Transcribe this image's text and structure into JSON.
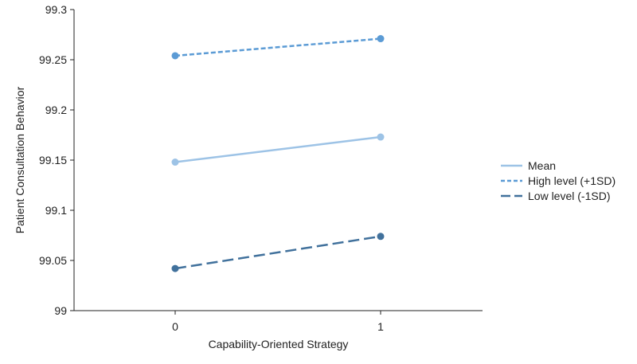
{
  "chart_data": {
    "type": "line",
    "title": "",
    "xlabel": "Capability-Oriented Strategy",
    "ylabel": "Patient Consultation Behavior",
    "x": [
      0,
      1
    ],
    "x_tick_labels": [
      "0",
      "1"
    ],
    "y_ticks": [
      "99",
      "99.05",
      "99.1",
      "99.15",
      "99.2",
      "99.25",
      "99.3"
    ],
    "ylim": [
      99,
      99.3
    ],
    "grid": false,
    "legend_position": "right",
    "series": [
      {
        "name": "Mean",
        "values": [
          99.148,
          99.173
        ],
        "color": "#9dc3e6",
        "dash": "solid"
      },
      {
        "name": "High level (+1SD)",
        "values": [
          99.254,
          99.271
        ],
        "color": "#5b9bd5",
        "dash": "short-dash"
      },
      {
        "name": "Low level (-1SD)",
        "values": [
          99.042,
          99.074
        ],
        "color": "#41719c",
        "dash": "long-dash"
      }
    ]
  }
}
